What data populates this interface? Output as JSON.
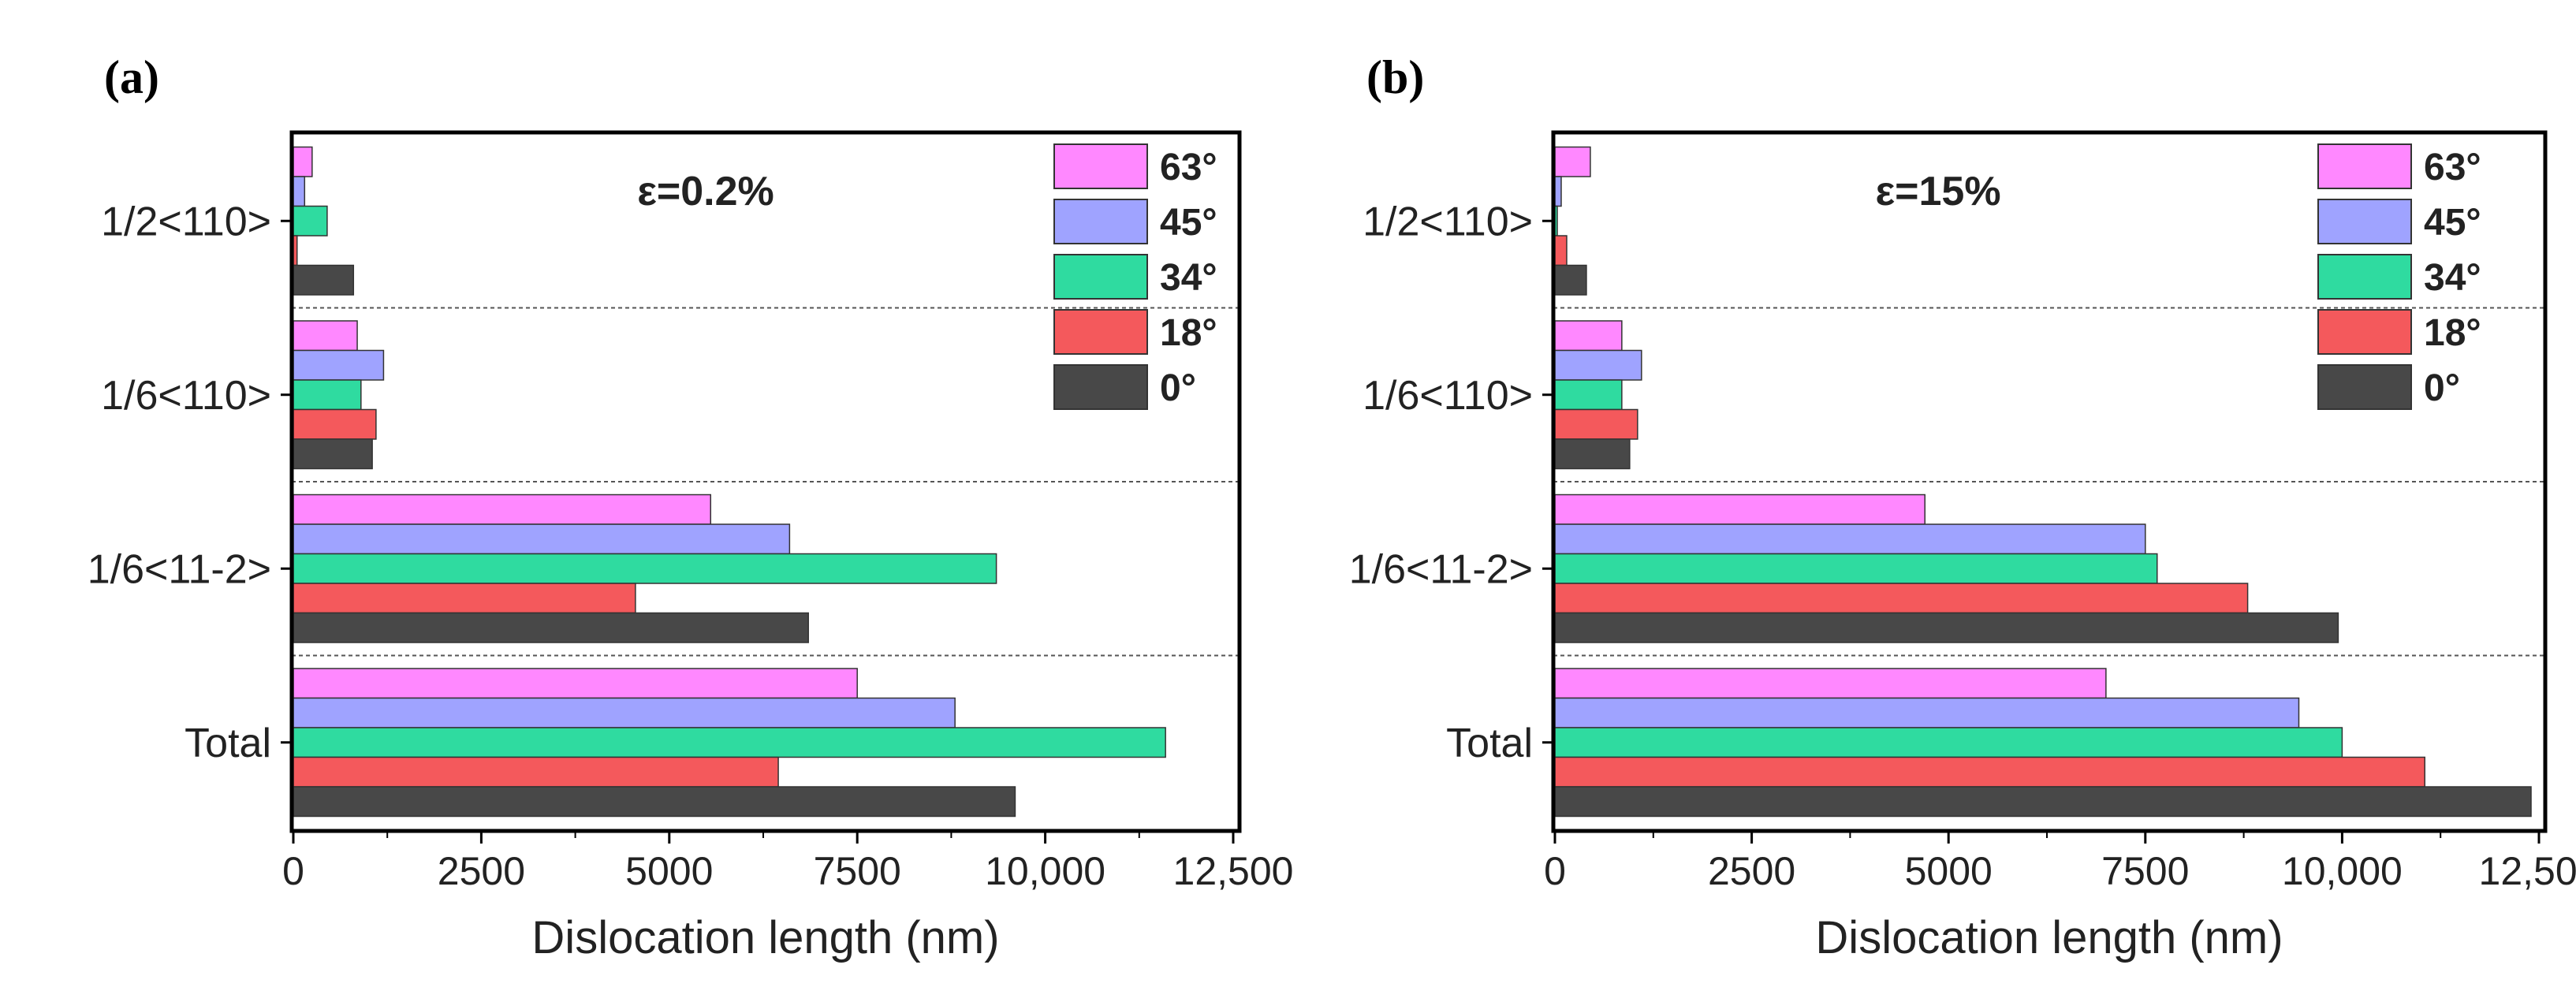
{
  "chart_data": [
    {
      "panel": "(a)",
      "type": "bar",
      "orientation": "horizontal",
      "annotation": "ε=0.2%",
      "xlabel": "Dislocation length (nm)",
      "ylabel": "",
      "xlim": [
        0,
        12500
      ],
      "xticks": [
        0,
        2500,
        5000,
        7500,
        10000,
        12500
      ],
      "xtick_labels": [
        "0",
        "2500",
        "5000",
        "7500",
        "10,000",
        "12,500"
      ],
      "categories": [
        "1/2<110>",
        "1/6<110>",
        "1/6<11-2>",
        "Total"
      ],
      "legend_position": "top-right",
      "series": [
        {
          "name": "63°",
          "color": "#ff88ff",
          "values": [
            250,
            850,
            5550,
            7500
          ]
        },
        {
          "name": "45°",
          "color": "#9fa3ff",
          "values": [
            150,
            1200,
            6600,
            8800
          ]
        },
        {
          "name": "34°",
          "color": "#2fdba0",
          "values": [
            450,
            900,
            9350,
            11600
          ]
        },
        {
          "name": "18°",
          "color": "#f4595c",
          "values": [
            50,
            1100,
            4550,
            6450
          ]
        },
        {
          "name": "0°",
          "color": "#484848",
          "values": [
            800,
            1050,
            6850,
            9600
          ]
        }
      ]
    },
    {
      "panel": "(b)",
      "type": "bar",
      "orientation": "horizontal",
      "annotation": "ε=15%",
      "xlabel": "Dislocation length (nm)",
      "ylabel": "",
      "xlim": [
        0,
        12500
      ],
      "xticks": [
        0,
        2500,
        5000,
        7500,
        10000,
        12500
      ],
      "xtick_labels": [
        "0",
        "2500",
        "5000",
        "7500",
        "10,000",
        "12,500"
      ],
      "categories": [
        "1/2<110>",
        "1/6<110>",
        "1/6<11-2>",
        "Total"
      ],
      "legend_position": "top-right",
      "series": [
        {
          "name": "63°",
          "color": "#ff88ff",
          "values": [
            450,
            850,
            4700,
            7000
          ]
        },
        {
          "name": "45°",
          "color": "#9fa3ff",
          "values": [
            80,
            1100,
            7500,
            9450
          ]
        },
        {
          "name": "34°",
          "color": "#2fdba0",
          "values": [
            30,
            850,
            7650,
            10000
          ]
        },
        {
          "name": "18°",
          "color": "#f4595c",
          "values": [
            150,
            1050,
            8800,
            11050
          ]
        },
        {
          "name": "0°",
          "color": "#484848",
          "values": [
            400,
            950,
            9950,
            12400
          ]
        }
      ]
    }
  ]
}
